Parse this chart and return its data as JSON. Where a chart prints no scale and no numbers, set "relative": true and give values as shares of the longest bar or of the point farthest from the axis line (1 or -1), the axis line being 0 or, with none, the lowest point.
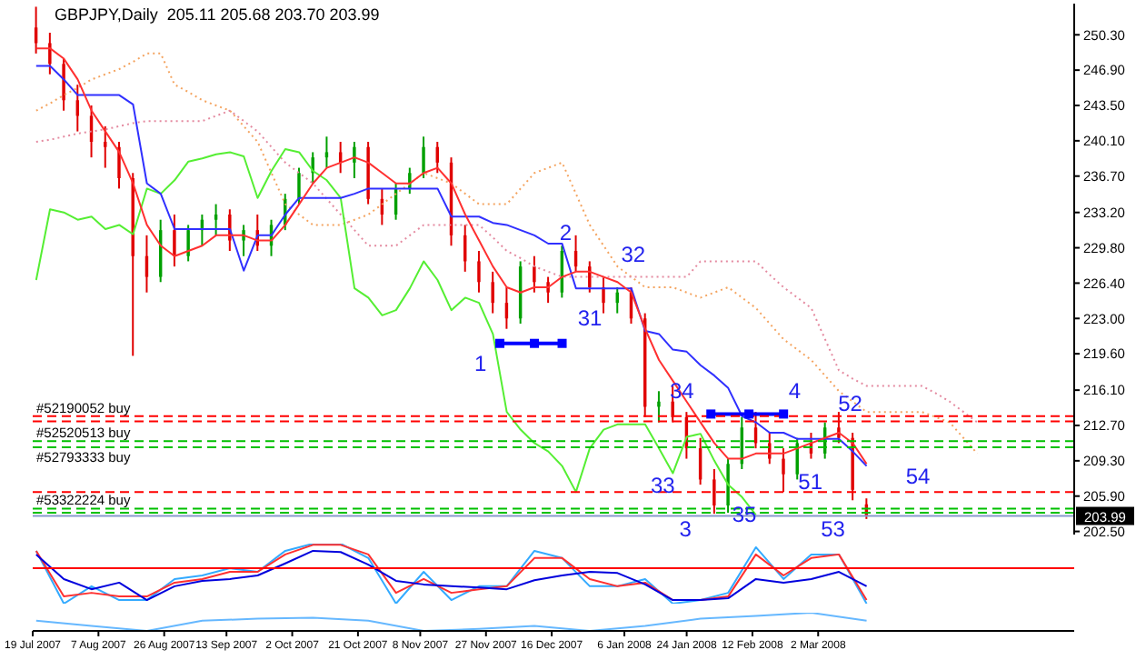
{
  "chart_data": [
    {
      "type": "candlestick",
      "title": "GBPJPY,Daily  205.11 205.68 203.70 203.99",
      "x": [
        "2007-07-20",
        "2007-07-24",
        "2007-07-28",
        "2007-08-01",
        "2007-08-05",
        "2007-08-09",
        "2007-08-13",
        "2007-08-17",
        "2007-08-21",
        "2007-08-25",
        "2007-08-29",
        "2007-09-02",
        "2007-09-06",
        "2007-09-10",
        "2007-09-14",
        "2007-09-18",
        "2007-09-22",
        "2007-09-26",
        "2007-09-30",
        "2007-10-04",
        "2007-10-08",
        "2007-10-12",
        "2007-10-16",
        "2007-10-20",
        "2007-10-24",
        "2007-10-28",
        "2007-11-01",
        "2007-11-05",
        "2007-11-09",
        "2007-11-13",
        "2007-11-17",
        "2007-11-21",
        "2007-11-25",
        "2007-11-29",
        "2007-12-03",
        "2007-12-07",
        "2007-12-11",
        "2007-12-15",
        "2007-12-19",
        "2007-12-23",
        "2007-12-27",
        "2007-12-31",
        "2008-01-04",
        "2008-01-08",
        "2008-01-12",
        "2008-01-16",
        "2008-01-20",
        "2008-01-24",
        "2008-01-28",
        "2008-02-01",
        "2008-02-05",
        "2008-02-09",
        "2008-02-13",
        "2008-02-17",
        "2008-02-21",
        "2008-02-25",
        "2008-02-29",
        "2008-03-04",
        "2008-03-08",
        "2008-03-12",
        "2008-03-16",
        "2008-03-20",
        "2008-03-24",
        "2008-03-28",
        "2008-04-01",
        "2008-04-05",
        "2008-04-09",
        "2008-04-13",
        "2008-04-17"
      ],
      "ohlc": [
        [
          251,
          253,
          248.5,
          249.5
        ],
        [
          249.5,
          250.5,
          246.5,
          247.5
        ],
        [
          247.5,
          248,
          243,
          244
        ],
        [
          244,
          245.5,
          241,
          242.5
        ],
        [
          242.5,
          243.5,
          238.5,
          240
        ],
        [
          240,
          241.5,
          237.5,
          239.5
        ],
        [
          239.5,
          240,
          235.5,
          236.5
        ],
        [
          236.5,
          237,
          219.4,
          229
        ],
        [
          229,
          231,
          225.5,
          227
        ],
        [
          227,
          232.5,
          226.5,
          231.5
        ],
        [
          231.5,
          233,
          228,
          229
        ],
        [
          229,
          232,
          228.5,
          231.5
        ],
        [
          231.5,
          233,
          230,
          232.5
        ],
        [
          232.5,
          234,
          231,
          233
        ],
        [
          233,
          233.5,
          229.5,
          230.5
        ],
        [
          230.5,
          232,
          229,
          231.5
        ],
        [
          231.5,
          233,
          229.5,
          230
        ],
        [
          230,
          232.5,
          229,
          232
        ],
        [
          232,
          235,
          231.5,
          234.5
        ],
        [
          234.5,
          237.5,
          234,
          237
        ],
        [
          237,
          239,
          236,
          238.5
        ],
        [
          238.5,
          240.5,
          237.5,
          239
        ],
        [
          239,
          240,
          237,
          238
        ],
        [
          238,
          240,
          236.5,
          239.5
        ],
        [
          239.5,
          240,
          234,
          234.5
        ],
        [
          234.5,
          235.5,
          232,
          233
        ],
        [
          233,
          236,
          232.5,
          235.5
        ],
        [
          235.5,
          237.5,
          235,
          237
        ],
        [
          237,
          240.5,
          236.5,
          239.5
        ],
        [
          239.5,
          240,
          237,
          238
        ],
        [
          238,
          238.5,
          230,
          231
        ],
        [
          231,
          232,
          227.5,
          228.5
        ],
        [
          228.5,
          229.5,
          225.5,
          226.5
        ],
        [
          226.5,
          227.5,
          223.5,
          224.5
        ],
        [
          224.5,
          226,
          222,
          223
        ],
        [
          223,
          228.5,
          222.5,
          228
        ],
        [
          228,
          229,
          225.5,
          226.5
        ],
        [
          226.5,
          227,
          224.5,
          225.5
        ],
        [
          225.5,
          230,
          225,
          229.5
        ],
        [
          229.5,
          231,
          227.5,
          228
        ],
        [
          228,
          228.5,
          225.5,
          226
        ],
        [
          226,
          227,
          223.5,
          224.5
        ],
        [
          224.5,
          226,
          223.5,
          225.5
        ],
        [
          225.5,
          226,
          222.5,
          223
        ],
        [
          223,
          223.5,
          213.5,
          214.5
        ],
        [
          214.5,
          216,
          213,
          215
        ],
        [
          215,
          216.5,
          213,
          213.5
        ],
        [
          213.5,
          214,
          209.5,
          210.5
        ],
        [
          210.5,
          211.5,
          207,
          207.5
        ],
        [
          207.5,
          208.5,
          204.2,
          205
        ],
        [
          205,
          209.5,
          204.3,
          209
        ],
        [
          209,
          213.5,
          208.5,
          212.5
        ],
        [
          212.5,
          214,
          210.5,
          211
        ],
        [
          211,
          212,
          209,
          209.5
        ],
        [
          209.5,
          210.5,
          206.3,
          208
        ],
        [
          208,
          211.5,
          207.5,
          211
        ],
        [
          211,
          212,
          209.5,
          210
        ],
        [
          210,
          213,
          209.5,
          212.5
        ],
        [
          212.5,
          214,
          211,
          211.5
        ],
        [
          211.5,
          212,
          205.5,
          206.5
        ],
        [
          205.11,
          205.68,
          203.7,
          203.99
        ],
        null,
        null,
        null,
        null,
        null,
        null,
        null,
        null
      ],
      "colors": [
        "#e00000",
        "#e00000",
        "#e00000",
        "#e00000",
        "#e00000",
        "#e00000",
        "#e00000",
        "#e00000",
        "#e00000",
        "#00a000",
        "#e00000",
        "#00a000",
        "#00a000",
        "#00a000",
        "#e00000",
        "#00a000",
        "#e00000",
        "#00a000",
        "#00a000",
        "#00a000",
        "#00a000",
        "#00a000",
        "#e00000",
        "#00a000",
        "#e00000",
        "#e00000",
        "#00a000",
        "#00a000",
        "#00a000",
        "#e00000",
        "#e00000",
        "#e00000",
        "#e00000",
        "#e00000",
        "#e00000",
        "#00a000",
        "#e00000",
        "#e00000",
        "#00a000",
        "#e00000",
        "#e00000",
        "#e00000",
        "#00a000",
        "#e00000",
        "#e00000",
        "#00a000",
        "#e00000",
        "#e00000",
        "#e00000",
        "#e00000",
        "#00a000",
        "#00a000",
        "#e00000",
        "#e00000",
        "#e00000",
        "#00a000",
        "#e00000",
        "#00a000",
        "#e00000",
        "#e00000",
        "#e00000",
        null,
        null,
        null,
        null,
        null,
        null,
        null,
        null
      ],
      "series": [
        {
          "type": "line",
          "color": "#f4a460",
          "line_style": "dotted",
          "values": [
            243,
            243.7,
            244.5,
            245.2,
            246,
            246.5,
            247,
            247.7,
            248.5,
            248.5,
            245.5,
            244.8,
            244,
            243.5,
            243,
            241.5,
            240,
            237,
            234,
            233,
            232,
            232,
            232,
            232.5,
            233,
            234,
            235,
            236,
            237,
            236.5,
            236,
            235,
            234,
            234,
            234,
            235.5,
            237,
            237.5,
            238,
            235,
            232,
            230,
            228,
            227,
            226,
            226,
            226,
            225.5,
            225,
            225.5,
            226,
            225,
            224,
            222.5,
            221,
            220,
            219,
            217.5,
            216,
            215,
            214,
            214,
            214,
            214,
            214,
            213.5,
            213,
            211.5,
            210
          ]
        },
        {
          "type": "line",
          "color": "#e48aa0",
          "line_style": "dotted",
          "values": [
            240,
            240.2,
            240.5,
            240.8,
            241,
            241.2,
            241.5,
            241.8,
            242,
            242,
            242,
            242,
            242,
            242.5,
            243,
            242,
            241,
            239.5,
            238,
            237,
            236,
            234.5,
            233,
            231.5,
            230,
            230,
            230,
            231,
            232,
            232,
            232,
            232,
            232,
            230.8,
            229.5,
            228.8,
            228,
            227.5,
            227,
            227,
            227,
            227,
            227,
            227,
            227,
            227,
            227,
            227,
            228.5,
            228.5,
            228.5,
            228.5,
            228.5,
            227.2,
            226,
            225,
            224,
            221,
            218,
            217.2,
            216.5,
            216.5,
            216.5,
            216.5,
            216.5,
            215.8,
            215,
            214,
            213
          ]
        },
        {
          "type": "line",
          "color": "#55ee33",
          "values": [
            226.7,
            233.5,
            233.2,
            232.5,
            232.8,
            231.6,
            232,
            231.1,
            235.5,
            235,
            236.3,
            238.1,
            238.4,
            238.8,
            239,
            238.6,
            234.6,
            237.2,
            239.3,
            239,
            237.2,
            236.3,
            234.6,
            225.9,
            225,
            223.3,
            223.8,
            225.9,
            228.5,
            226.7,
            223.8,
            225,
            224.5,
            221.5,
            214,
            212.3,
            211,
            210.2,
            208.8,
            206.3,
            210.5,
            212.3,
            212.8,
            212.8,
            212.8,
            210.5,
            208.1,
            211.6,
            211.9,
            209.3,
            207,
            205.8,
            204.1,
            null,
            null,
            null,
            null,
            null,
            null,
            null,
            null,
            null,
            null,
            null,
            null,
            null,
            null,
            null,
            null
          ]
        },
        {
          "type": "line",
          "color": "#3030ff",
          "values": [
            247.3,
            247.3,
            246,
            244.5,
            244.5,
            244.5,
            244.5,
            243.6,
            236,
            235,
            231.6,
            231.6,
            231.6,
            231.6,
            231.6,
            227.6,
            231,
            231,
            233,
            234.6,
            234.6,
            234.6,
            234.6,
            235,
            235.5,
            235.5,
            235.5,
            235.5,
            235.5,
            235.5,
            232.8,
            232.8,
            232.8,
            232.2,
            232,
            231.5,
            231,
            230.2,
            230.2,
            225.9,
            225.9,
            225.9,
            225.9,
            225.9,
            221.8,
            221.5,
            220,
            219.8,
            218.5,
            217.5,
            216.3,
            213.6,
            213,
            212,
            212,
            211.4,
            211.4,
            211.4,
            211.4,
            210.2,
            208.8,
            null,
            null,
            null,
            null,
            null,
            null,
            null,
            null
          ]
        },
        {
          "type": "line",
          "color": "#ff3030",
          "values": [
            249,
            249,
            248,
            246,
            243,
            241,
            239,
            236,
            232,
            230,
            229,
            229.5,
            230,
            231,
            231,
            231,
            230.5,
            230.5,
            232,
            234,
            236,
            237.5,
            238,
            238.5,
            238,
            237,
            236,
            236,
            237,
            237.5,
            236,
            233,
            230.5,
            228,
            226,
            225.5,
            226,
            226,
            227,
            227.5,
            227.5,
            227,
            226.5,
            225.5,
            222,
            219,
            217,
            215,
            213,
            211,
            209.5,
            209.5,
            210,
            210,
            210,
            210.5,
            211,
            211.5,
            212,
            211,
            209,
            null,
            null,
            null,
            null,
            null,
            null,
            null,
            null
          ]
        },
        {
          "type": "line",
          "color": "#0000ff",
          "marker": "square",
          "x": [
            "2007-12-01",
            "2007-12-11",
            "2007-12-19"
          ],
          "values": [
            220.6,
            220.6,
            220.6
          ]
        },
        {
          "type": "line",
          "color": "#0000ff",
          "marker": "square",
          "x": [
            "2008-01-31",
            "2008-02-11",
            "2008-02-21"
          ],
          "values": [
            213.8,
            213.8,
            213.8
          ]
        }
      ],
      "xlim": [
        "2007-07-19",
        "2008-05-15"
      ],
      "ylim": [
        202.2,
        253.3
      ],
      "yticks": [
        {
          "value": 202.5,
          "label": "202.50"
        },
        {
          "value": 205.9,
          "label": "205.90"
        },
        {
          "value": 209.3,
          "label": "209.30"
        },
        {
          "value": 212.7,
          "label": "212.70"
        },
        {
          "value": 216.1,
          "label": "216.10"
        },
        {
          "value": 219.6,
          "label": "219.60"
        },
        {
          "value": 223,
          "label": "223.00"
        },
        {
          "value": 226.4,
          "label": "226.40"
        },
        {
          "value": 229.8,
          "label": "229.80"
        },
        {
          "value": 233.2,
          "label": "233.20"
        },
        {
          "value": 236.7,
          "label": "236.70"
        },
        {
          "value": 240.1,
          "label": "240.10"
        },
        {
          "value": 243.5,
          "label": "243.50"
        },
        {
          "value": 246.9,
          "label": "246.90"
        },
        {
          "value": 250.3,
          "label": "250.30"
        }
      ],
      "tick_labels": "y",
      "ref_lines": [
        {
          "axis": "y",
          "value": 213.6,
          "label": "#52190052 buy",
          "color": "#ff0000",
          "line_style": "dashed"
        },
        {
          "axis": "y",
          "value": 213.1,
          "color": "#ff0000",
          "line_style": "dashed"
        },
        {
          "axis": "y",
          "value": 211.2,
          "label": "#52520513 buy",
          "color": "#00c000",
          "line_style": "dashed"
        },
        {
          "axis": "y",
          "value": 210.6,
          "label": "#52793333 buy",
          "color": "#00c000",
          "line_style": "dashed"
        },
        {
          "axis": "y",
          "value": 206.3,
          "color": "#ff0000",
          "line_style": "dashed"
        },
        {
          "axis": "y",
          "value": 204.7,
          "label": "#53322224 buy",
          "color": "#00c000",
          "line_style": "dashed"
        },
        {
          "axis": "y",
          "value": 204.3,
          "color": "#00c000",
          "line_style": "dashed"
        },
        {
          "axis": "y",
          "value": 203.99,
          "label": "203.99",
          "color": "#8899cc",
          "line_style": "solid"
        }
      ],
      "annotations": [
        "1",
        "2",
        "31",
        "32",
        "33",
        "3",
        "34",
        "35",
        "4",
        "51",
        "52",
        "53",
        "54"
      ]
    },
    {
      "type": "line",
      "relative": true,
      "x": [
        "2007-07-20",
        "2007-07-28",
        "2007-08-05",
        "2007-08-13",
        "2007-08-21",
        "2007-08-29",
        "2007-09-06",
        "2007-09-14",
        "2007-09-22",
        "2007-09-30",
        "2007-10-08",
        "2007-10-16",
        "2007-10-24",
        "2007-11-01",
        "2007-11-09",
        "2007-11-17",
        "2007-11-25",
        "2007-12-03",
        "2007-12-11",
        "2007-12-19",
        "2007-12-27",
        "2008-01-04",
        "2008-01-12",
        "2008-01-20",
        "2008-01-28",
        "2008-02-05",
        "2008-02-13",
        "2008-02-21",
        "2008-02-29",
        "2008-03-08",
        "2008-03-16"
      ],
      "series": [
        {
          "color": "#33aaff",
          "values": [
            0.88,
            0,
            0.29,
            0.06,
            0.06,
            0.41,
            0.47,
            0.59,
            0.53,
            0.88,
            1,
            1,
            0.76,
            0,
            0.53,
            0.06,
            0.29,
            0.29,
            0.88,
            0.76,
            0.29,
            0.29,
            0.41,
            0,
            0.06,
            0.18,
            0.94,
            0.41,
            0.82,
            0.82,
            0
          ]
        },
        {
          "color": "#ff3030",
          "values": [
            0.88,
            0.12,
            0.18,
            0.12,
            0.12,
            0.35,
            0.41,
            0.53,
            0.53,
            0.82,
            0.98,
            0.98,
            0.82,
            0.18,
            0.41,
            0.18,
            0.24,
            0.29,
            0.76,
            0.76,
            0.41,
            0.29,
            0.35,
            0.06,
            0.06,
            0.12,
            0.82,
            0.47,
            0.76,
            0.82,
            0.06
          ]
        },
        {
          "color": "#0000dd",
          "values": [
            0.82,
            0.41,
            0.24,
            0.35,
            0.06,
            0.29,
            0.38,
            0.41,
            0.47,
            0.67,
            0.88,
            0.86,
            0.65,
            0.38,
            0.32,
            0.29,
            0.27,
            0.24,
            0.39,
            0.47,
            0.53,
            0.51,
            0.32,
            0.06,
            0.06,
            0.09,
            0.41,
            0.35,
            0.41,
            0.53,
            0.29
          ]
        }
      ],
      "ref_lines": [
        {
          "axis": "y",
          "value": 0.59,
          "color": "#ff0000",
          "line_style": "solid"
        }
      ],
      "xlim": [
        "2007-07-19",
        "2008-05-15"
      ],
      "tick_labels": false
    },
    {
      "type": "line",
      "relative": true,
      "x": [
        "2007-07-20",
        "2007-08-05",
        "2007-08-21",
        "2007-09-06",
        "2007-09-22",
        "2007-10-08",
        "2007-10-24",
        "2007-11-09",
        "2007-11-25",
        "2007-12-11",
        "2007-12-27",
        "2008-01-12",
        "2008-01-28",
        "2008-02-13",
        "2008-02-29",
        "2008-03-16"
      ],
      "series": [
        {
          "color": "#66b8ff",
          "values": [
            0.56,
            0.28,
            0,
            0.56,
            0.67,
            0.72,
            0.56,
            0,
            0.11,
            0.28,
            0,
            0.28,
            0.67,
            0.83,
            1,
            0.56
          ]
        }
      ],
      "xlim": [
        "2007-07-19",
        "2008-05-15"
      ],
      "xticks": [
        {
          "value": "2007-07-19",
          "label": "19 Jul 2007"
        },
        {
          "value": "2007-08-07",
          "label": "7 Aug 2007"
        },
        {
          "value": "2007-08-26",
          "label": "26 Aug 2007"
        },
        {
          "value": "2007-09-13",
          "label": "13 Sep 2007"
        },
        {
          "value": "2007-10-02",
          "label": "2 Oct 2007"
        },
        {
          "value": "2007-10-21",
          "label": "21 Oct 2007"
        },
        {
          "value": "2007-11-08",
          "label": "8 Nov 2007"
        },
        {
          "value": "2007-11-27",
          "label": "27 Nov 2007"
        },
        {
          "value": "2007-12-16",
          "label": "16 Dec 2007"
        },
        {
          "value": "2008-01-06",
          "label": "6 Jan 2008"
        },
        {
          "value": "2008-01-24",
          "label": "24 Jan 2008"
        },
        {
          "value": "2008-02-12",
          "label": "12 Feb 2008"
        },
        {
          "value": "2008-03-02",
          "label": "2 Mar 2008"
        }
      ],
      "tick_labels": "x"
    }
  ]
}
